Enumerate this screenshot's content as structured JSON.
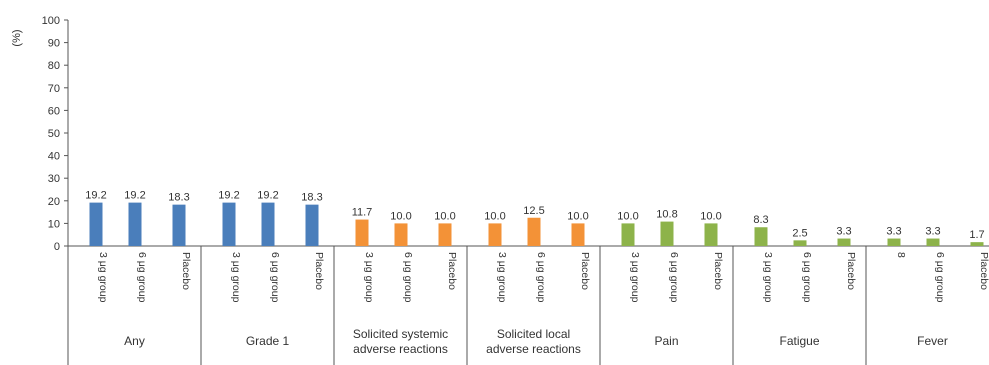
{
  "chart_data": {
    "type": "bar",
    "ylabel": "(%)",
    "ylim": [
      0,
      100
    ],
    "yticks": [
      0,
      10,
      20,
      30,
      40,
      50,
      60,
      70,
      80,
      90,
      100
    ],
    "grid": false,
    "colors": {
      "blue": "#4a7ebb",
      "orange": "#f39237",
      "green": "#8db34a",
      "axis": "#555555"
    },
    "groups": [
      {
        "label": [
          "Any"
        ],
        "color": "#4a7ebb",
        "bars": [
          {
            "label": "3 μg group",
            "value": 19.2
          },
          {
            "label": "6 μg group",
            "value": 19.2
          },
          {
            "label": "Placebo",
            "value": 18.3
          }
        ]
      },
      {
        "label": [
          "Grade 1"
        ],
        "color": "#4a7ebb",
        "bars": [
          {
            "label": "3 μg group",
            "value": 19.2
          },
          {
            "label": "6 μg group",
            "value": 19.2
          },
          {
            "label": "Placebo",
            "value": 18.3
          }
        ]
      },
      {
        "label": [
          "Solicited systemic",
          "adverse reactions"
        ],
        "color": "#f39237",
        "bars": [
          {
            "label": "3 μg group",
            "value": 11.7
          },
          {
            "label": "6 μg group",
            "value": 10.0
          },
          {
            "label": "Placebo",
            "value": 10.0
          }
        ]
      },
      {
        "label": [
          "Solicited local",
          "adverse reactions"
        ],
        "color": "#f39237",
        "bars": [
          {
            "label": "3 μg group",
            "value": 10.0
          },
          {
            "label": "6 μg group",
            "value": 12.5
          },
          {
            "label": "Placebo",
            "value": 10.0
          }
        ]
      },
      {
        "label": [
          "Pain"
        ],
        "color": "#8db34a",
        "bars": [
          {
            "label": "3 μg group",
            "value": 10.0
          },
          {
            "label": "6 μg group",
            "value": 10.8
          },
          {
            "label": "Placebo",
            "value": 10.0
          }
        ]
      },
      {
        "label": [
          "Fatigue"
        ],
        "color": "#8db34a",
        "bars": [
          {
            "label": "3 μg group",
            "value": 8.3
          },
          {
            "label": "6 μg group",
            "value": 2.5
          },
          {
            "label": "Placebo",
            "value": 3.3
          }
        ]
      },
      {
        "label": [
          "Fever"
        ],
        "color": "#8db34a",
        "bars": [
          {
            "label": "8",
            "value": 3.3
          },
          {
            "label": "6 μg group",
            "value": 3.3
          },
          {
            "label": "Placebo",
            "value": 1.7
          }
        ]
      }
    ]
  }
}
